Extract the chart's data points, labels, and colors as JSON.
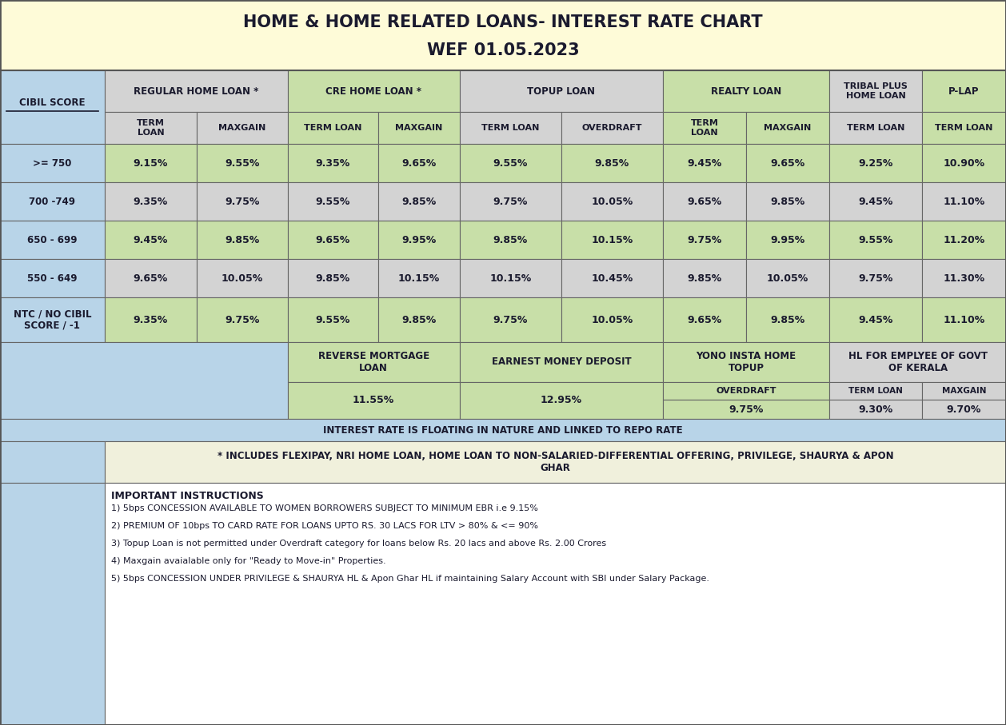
{
  "title_line1": "HOME & HOME RELATED LOANS- INTEREST RATE CHART",
  "title_line2": "WEF 01.05.2023",
  "title_bg": "#FEFBD8",
  "c_blue": "#B8D4E8",
  "c_green": "#C8DFA8",
  "c_gray": "#D3D3D3",
  "c_white": "#FFFFFF",
  "c_cream": "#F5F5E8",
  "border": "#888888",
  "text": "#1A1A2E",
  "data_rows": [
    [
      ">= 750",
      "9.15%",
      "9.55%",
      "9.35%",
      "9.65%",
      "9.55%",
      "9.85%",
      "9.45%",
      "9.65%",
      "9.25%",
      "10.90%"
    ],
    [
      "700 -749",
      "9.35%",
      "9.75%",
      "9.55%",
      "9.85%",
      "9.75%",
      "10.05%",
      "9.65%",
      "9.85%",
      "9.45%",
      "11.10%"
    ],
    [
      "650 - 699",
      "9.45%",
      "9.85%",
      "9.65%",
      "9.95%",
      "9.85%",
      "10.15%",
      "9.75%",
      "9.95%",
      "9.55%",
      "11.20%"
    ],
    [
      "550 - 649",
      "9.65%",
      "10.05%",
      "9.85%",
      "10.15%",
      "10.15%",
      "10.45%",
      "9.85%",
      "10.05%",
      "9.75%",
      "11.30%"
    ],
    [
      "NTC / NO CIBIL\nSCORE / -1",
      "9.35%",
      "9.75%",
      "9.55%",
      "9.85%",
      "9.75%",
      "10.05%",
      "9.65%",
      "9.85%",
      "9.45%",
      "11.10%"
    ]
  ],
  "floating_note": "INTEREST RATE IS FLOATING IN NATURE AND LINKED TO REPO RATE",
  "includes_note": "* INCLUDES FLEXIPAY, NRI HOME LOAN, HOME LOAN TO NON-SALARIED-DIFFERENTIAL OFFERING, PRIVILEGE, SHAURYA & APON\nGHAR",
  "instructions_title": "IMPORTANT INSTRUCTIONS",
  "instructions": [
    "1) 5bps CONCESSION AVAILABLE TO WOMEN BORROWERS SUBJECT TO MINIMUM EBR i.e 9.15%",
    "2) PREMIUM OF 10bps TO CARD RATE FOR LOANS UPTO RS. 30 LACS FOR LTV > 80% & <= 90%",
    "3) Topup Loan is not permitted under Overdraft category for loans below Rs. 20 lacs and above Rs. 2.00 Crores",
    "4) Maxgain avaialable only for \"Ready to Move-in\" Properties.",
    "5) 5bps CONCESSION UNDER PRIVILEGE & SHAURYA HL & Apon Ghar HL if maintaining Salary Account with SBI under Salary Package."
  ]
}
